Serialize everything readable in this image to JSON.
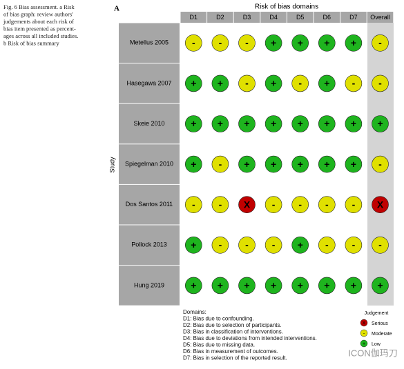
{
  "caption": {
    "lines": [
      "Fig. 6  Bias assessment. a Risk",
      "of bias graph: review authors'",
      "judgements about each risk of",
      "bias item presented as percent-",
      "ages across all included studies.",
      "b Risk of bias summary"
    ]
  },
  "panel_label": "A",
  "header": "Risk of bias domains",
  "y_label": "Study",
  "columns": [
    "D1",
    "D2",
    "D3",
    "D4",
    "D5",
    "D6",
    "D7",
    "Overall"
  ],
  "studies": [
    {
      "name": "Metellus 2005",
      "judgements": [
        "-",
        "-",
        "-",
        "+",
        "+",
        "+",
        "+",
        "-"
      ]
    },
    {
      "name": "Hasegawa 2007",
      "judgements": [
        "+",
        "+",
        "-",
        "+",
        "-",
        "+",
        "-",
        "-"
      ]
    },
    {
      "name": "Skeie 2010",
      "judgements": [
        "+",
        "+",
        "+",
        "+",
        "+",
        "+",
        "+",
        "+"
      ]
    },
    {
      "name": "Spiegelman 2010",
      "judgements": [
        "+",
        "-",
        "+",
        "+",
        "+",
        "+",
        "+",
        "-"
      ]
    },
    {
      "name": "Dos Santos 2011",
      "judgements": [
        "-",
        "-",
        "X",
        "-",
        "-",
        "-",
        "-",
        "X"
      ]
    },
    {
      "name": "Pollock 2013",
      "judgements": [
        "+",
        "-",
        "-",
        "-",
        "+",
        "-",
        "-",
        "-"
      ]
    },
    {
      "name": "Hung 2019",
      "judgements": [
        "+",
        "+",
        "+",
        "+",
        "+",
        "+",
        "+",
        "+"
      ]
    }
  ],
  "domains": {
    "title": "Domains:",
    "lines": [
      "D1: Bias due to confounding.",
      "D2: Bias due to selection of participants.",
      "D3: Bias in classification of interventions.",
      "D4: Bias due to deviations from intended interventions.",
      "D5: Bias due to missing data.",
      "D6: Bias in measurement of outcomes.",
      "D7: Bias in selection of the reported result."
    ]
  },
  "legend": {
    "title": "Judgement",
    "items": [
      {
        "symbol": "X",
        "label": "Serious",
        "color": "#c00000"
      },
      {
        "symbol": "-",
        "label": "Moderate",
        "color": "#e0e000"
      },
      {
        "symbol": "+",
        "label": "Low",
        "color": "#1eb41e"
      }
    ]
  },
  "watermark": "ICON伽玛刀"
}
